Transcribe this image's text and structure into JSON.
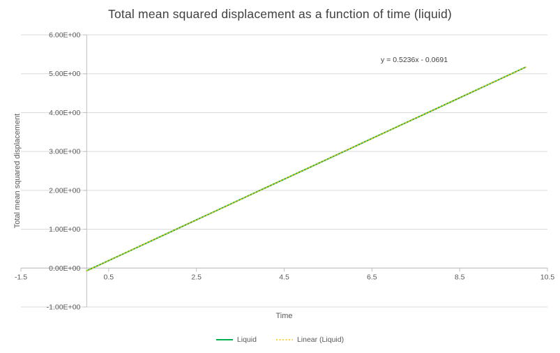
{
  "chart_data": {
    "type": "line",
    "title": "Total mean squared displacement as a function of time (liquid)",
    "xlabel": "Time",
    "ylabel": "Total mean squared displacement",
    "xlim": [
      -1.5,
      10.5
    ],
    "ylim": [
      -1,
      6
    ],
    "x_ticks": [
      -1.5,
      0.5,
      2.5,
      4.5,
      6.5,
      8.5,
      10.5
    ],
    "x_tick_labels": [
      "-1.5",
      "0.5",
      "2.5",
      "4.5",
      "6.5",
      "8.5",
      "10.5"
    ],
    "y_ticks": [
      -1,
      0,
      1,
      2,
      3,
      4,
      5,
      6
    ],
    "y_tick_labels": [
      "-1.00E+00",
      "0.00E+00",
      "1.00E+00",
      "2.00E+00",
      "3.00E+00",
      "4.00E+00",
      "5.00E+00",
      "6.00E+00"
    ],
    "grid": "horizontal-major",
    "legend_position": "bottom",
    "annotation": "y = 0.5236x - 0.0691",
    "trendline_equation": {
      "slope": 0.5236,
      "intercept": -0.0691
    },
    "colors": {
      "gridline": "#D9D9D9",
      "axis": "#BFBFBF",
      "title": "#404040",
      "tick_text": "#595959"
    },
    "series": [
      {
        "name": "Liquid",
        "color": "#00B050",
        "style": "solid",
        "width": 2,
        "x": [
          0,
          1,
          2,
          3,
          4,
          5,
          6,
          7,
          8,
          9,
          10
        ],
        "y": [
          -0.0691,
          0.4545,
          0.9781,
          1.5017,
          2.0253,
          2.5489,
          3.0725,
          3.5961,
          4.1197,
          4.6433,
          5.1669
        ]
      },
      {
        "name": "Linear (Liquid)",
        "color": "#FFC000",
        "style": "dotted",
        "width": 1.5,
        "x": [
          0,
          10
        ],
        "y": [
          -0.0691,
          5.1669
        ]
      }
    ]
  }
}
